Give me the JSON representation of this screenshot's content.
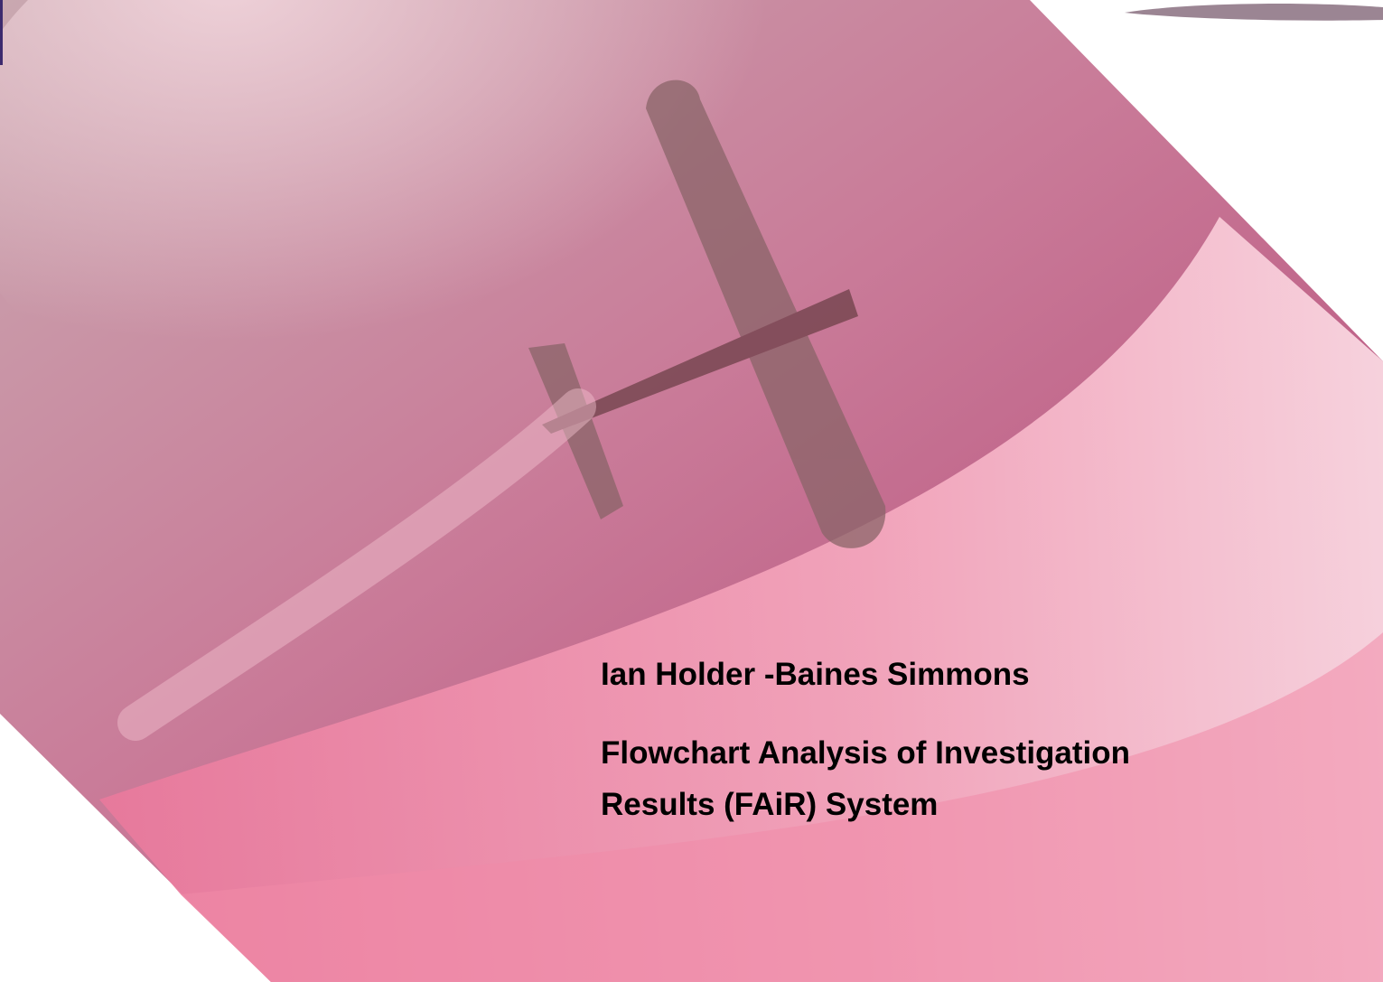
{
  "slide": {
    "author": "Ian Holder -Baines Simmons",
    "title_line_1": "Flowchart Analysis of Investigation",
    "title_line_2": "Results (FAiR) System"
  }
}
